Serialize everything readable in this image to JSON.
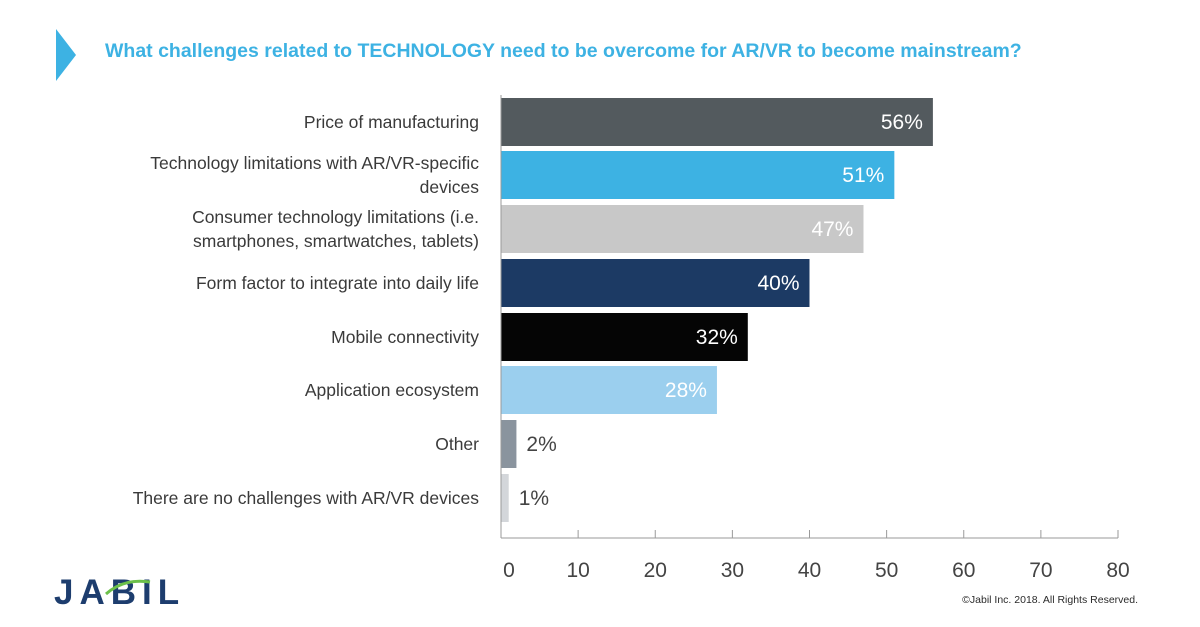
{
  "title": "What challenges related to TECHNOLOGY need to be overcome for AR/VR to become mainstream?",
  "brand": {
    "logo_text": "JABIL",
    "copyright": "©Jabil Inc. 2018. All Rights Reserved."
  },
  "colors": {
    "accent": "#3db2e3",
    "logo": "#1d3d6e"
  },
  "chart_data": {
    "type": "bar",
    "orientation": "horizontal",
    "categories": [
      [
        "Price of manufacturing"
      ],
      [
        "Technology limitations with AR/VR-specific",
        "devices"
      ],
      [
        "Consumer technology limitations (i.e.",
        "smartphones, smartwatches, tablets)"
      ],
      [
        "Form factor to integrate into daily life"
      ],
      [
        "Mobile connectivity"
      ],
      [
        "Application ecosystem"
      ],
      [
        "Other"
      ],
      [
        "There are no challenges with AR/VR devices"
      ]
    ],
    "values": [
      56,
      51,
      47,
      40,
      32,
      28,
      2,
      1
    ],
    "value_labels": [
      "56%",
      "51%",
      "47%",
      "40%",
      "32%",
      "28%",
      "2%",
      "1%"
    ],
    "bar_colors": [
      "#535a5e",
      "#3db2e3",
      "#c8c8c8",
      "#1c3a64",
      "#050505",
      "#9bcfee",
      "#8a949e",
      "#d3d6da"
    ],
    "label_colors": [
      "#ffffff",
      "#ffffff",
      "#ffffff",
      "#ffffff",
      "#ffffff",
      "#ffffff",
      "#444444",
      "#444444"
    ],
    "xlim": [
      0,
      80
    ],
    "xticks": [
      0,
      10,
      20,
      30,
      40,
      50,
      60,
      70,
      80
    ],
    "xlabel": "",
    "ylabel": "",
    "grid": false,
    "legend": "none"
  }
}
